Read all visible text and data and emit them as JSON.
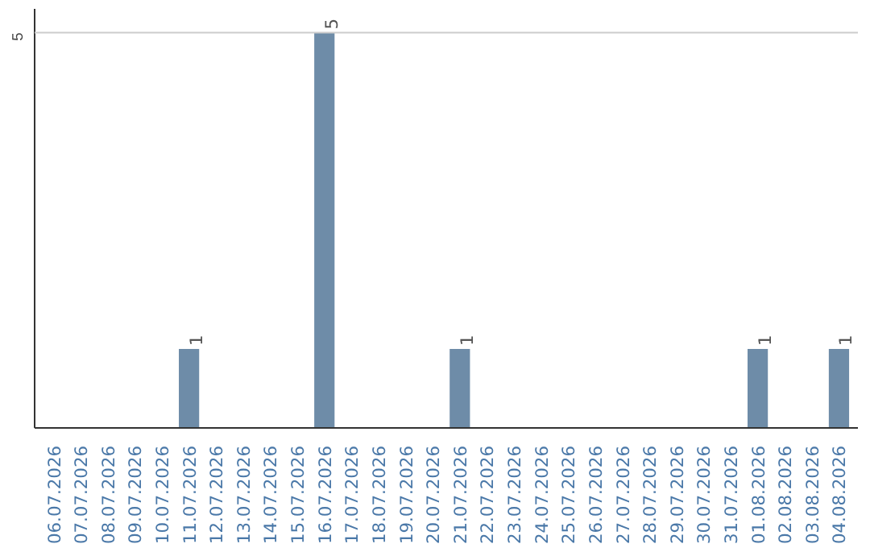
{
  "chart_data": {
    "type": "bar",
    "categories": [
      "06.07.2026",
      "07.07.2026",
      "08.07.2026",
      "09.07.2026",
      "10.07.2026",
      "11.07.2026",
      "12.07.2026",
      "13.07.2026",
      "14.07.2026",
      "15.07.2026",
      "16.07.2026",
      "17.07.2026",
      "18.07.2026",
      "19.07.2026",
      "20.07.2026",
      "21.07.2026",
      "22.07.2026",
      "23.07.2026",
      "24.07.2026",
      "25.07.2026",
      "26.07.2026",
      "27.07.2026",
      "28.07.2026",
      "29.07.2026",
      "30.07.2026",
      "31.07.2026",
      "01.08.2026",
      "02.08.2026",
      "03.08.2026",
      "04.08.2026"
    ],
    "values": [
      0,
      0,
      0,
      0,
      0,
      1,
      0,
      0,
      0,
      0,
      5,
      0,
      0,
      0,
      0,
      1,
      0,
      0,
      0,
      0,
      0,
      0,
      0,
      0,
      0,
      0,
      1,
      0,
      0,
      1
    ],
    "value_labels": [
      null,
      null,
      null,
      null,
      null,
      "1",
      null,
      null,
      null,
      null,
      "5",
      null,
      null,
      null,
      null,
      "1",
      null,
      null,
      null,
      null,
      null,
      null,
      null,
      null,
      null,
      null,
      "1",
      null,
      null,
      "1"
    ],
    "color": "#6e8ca8",
    "ylim": [
      0,
      5.3
    ],
    "yticks": [
      5
    ],
    "grid": "y"
  }
}
